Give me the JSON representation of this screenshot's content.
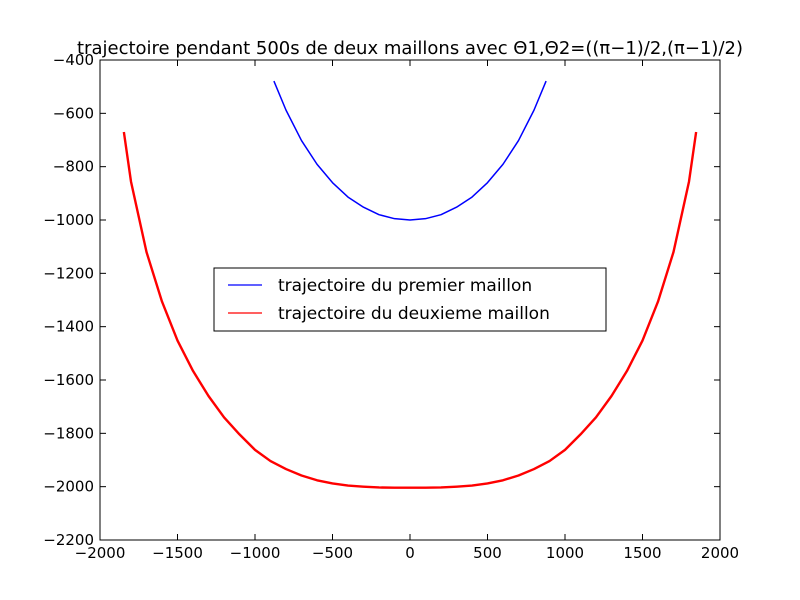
{
  "chart_data": {
    "type": "line",
    "title": "trajectoire pendant 500s de deux maillons avec Θ1,Θ2=((π−1)/2,(π−1)/2)",
    "xlabel": "",
    "ylabel": "",
    "xlim": [
      -2000,
      2000
    ],
    "ylim": [
      -2200,
      -400
    ],
    "xticks": [
      -2000,
      -1500,
      -1000,
      -500,
      0,
      500,
      1000,
      1500,
      2000
    ],
    "yticks": [
      -2200,
      -2000,
      -1800,
      -1600,
      -1400,
      -1200,
      -1000,
      -800,
      -600,
      -400
    ],
    "xtick_labels": [
      "−2000",
      "−1500",
      "−1000",
      "−500",
      "0",
      "500",
      "1000",
      "1500",
      "2000"
    ],
    "ytick_labels": [
      "−2200",
      "−2000",
      "−1800",
      "−1600",
      "−1400",
      "−1200",
      "−1000",
      "−800",
      "−600",
      "−400"
    ],
    "grid": false,
    "legend_position": "center",
    "series": [
      {
        "name": "trajectoire du premier maillon",
        "color": "#0000ff",
        "x": [
          -878,
          -800,
          -700,
          -600,
          -500,
          -400,
          -300,
          -200,
          -100,
          0,
          100,
          200,
          300,
          400,
          500,
          600,
          700,
          800,
          878
        ],
        "y": [
          -479,
          -588,
          -702,
          -791,
          -860,
          -914,
          -952,
          -980,
          -995,
          -1000,
          -995,
          -980,
          -952,
          -914,
          -860,
          -791,
          -702,
          -588,
          -479
        ]
      },
      {
        "name": "trajectoire du deuxieme maillon",
        "color": "#ff0000",
        "x": [
          -1846,
          -1800,
          -1700,
          -1600,
          -1500,
          -1400,
          -1300,
          -1200,
          -1100,
          -1000,
          -900,
          -800,
          -700,
          -600,
          -500,
          -400,
          -300,
          -200,
          -100,
          0,
          100,
          200,
          300,
          400,
          500,
          600,
          700,
          800,
          900,
          1000,
          1100,
          1200,
          1300,
          1400,
          1500,
          1600,
          1700,
          1800,
          1846
        ],
        "y": [
          -670,
          -856,
          -1120,
          -1306,
          -1452,
          -1566,
          -1660,
          -1740,
          -1804,
          -1862,
          -1904,
          -1934,
          -1958,
          -1976,
          -1988,
          -1996,
          -2000,
          -2003,
          -2004,
          -2004,
          -2004,
          -2003,
          -2000,
          -1996,
          -1988,
          -1976,
          -1958,
          -1934,
          -1904,
          -1862,
          -1804,
          -1740,
          -1660,
          -1566,
          -1452,
          -1306,
          -1120,
          -856,
          -670
        ]
      }
    ]
  }
}
